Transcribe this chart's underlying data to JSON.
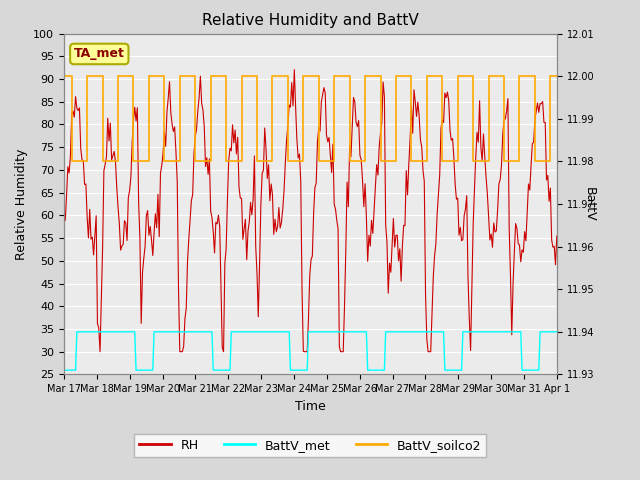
{
  "title": "Relative Humidity and BattV",
  "xlabel": "Time",
  "ylabel_left": "Relative Humidity",
  "ylabel_right": "BattV",
  "ylim_left": [
    25,
    100
  ],
  "ylim_right": [
    11.93,
    12.01
  ],
  "yticks_left": [
    25,
    30,
    35,
    40,
    45,
    50,
    55,
    60,
    65,
    70,
    75,
    80,
    85,
    90,
    95,
    100
  ],
  "yticks_right": [
    11.93,
    11.94,
    11.95,
    11.96,
    11.97,
    11.98,
    11.99,
    12.0,
    12.01
  ],
  "xtick_labels": [
    "Mar 17",
    "Mar 18",
    "Mar 19",
    "Mar 20",
    "Mar 21",
    "Mar 22",
    "Mar 23",
    "Mar 24",
    "Mar 25",
    "Mar 26",
    "Mar 27",
    "Mar 28",
    "Mar 29",
    "Mar 30",
    "Mar 31",
    "Apr 1"
  ],
  "rh_color": "#cc0000",
  "battv_met_color": "#00ffff",
  "battv_soilco2_color": "#ffaa00",
  "background_color": "#d8d8d8",
  "plot_bg_color": "#ebebeb",
  "grid_color": "#ffffff",
  "annotation_text": "TA_met",
  "annotation_bg": "#ffff99",
  "annotation_border": "#aaaa00",
  "legend_rh_label": "RH",
  "legend_battv_met_label": "BattV_met",
  "legend_battv_soilco2_label": "BattV_soilco2"
}
